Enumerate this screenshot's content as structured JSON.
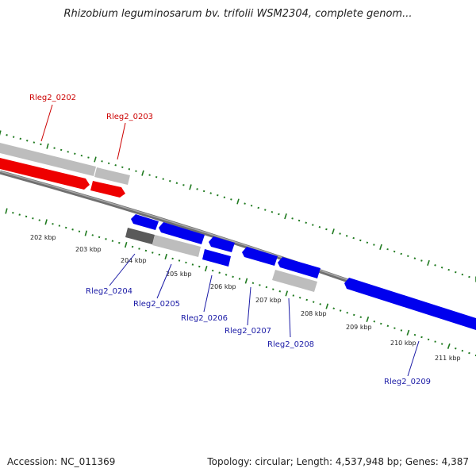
{
  "title": "Rhizobium leguminosarum bv. trifolii WSM2304, complete genom...",
  "footer": {
    "accession": "Accession: NC_011369",
    "topology": "Topology: circular; Length: 4,537,948 bp; Genes: 4,387"
  },
  "colors": {
    "forward_cds": "#ee0000",
    "reverse_cds": "#0000ee",
    "gene_feature": "#b8b8b8",
    "dark_feature": "#555555",
    "backbone": "#808080",
    "tick_marks": "#1f7a1f",
    "top_label": "#cc0000",
    "bottom_label": "#1a1aa6"
  },
  "kbp_labels": [
    "202 kbp",
    "203 kbp",
    "204 kbp",
    "205 kbp",
    "206 kbp",
    "207 kbp",
    "208 kbp",
    "209 kbp",
    "210 kbp",
    "211 kbp"
  ],
  "genes_top": [
    "Rleg2_0202",
    "Rleg2_0203"
  ],
  "genes_bottom": [
    "Rleg2_0204",
    "Rleg2_0205",
    "Rleg2_0206",
    "Rleg2_0207",
    "Rleg2_0208",
    "Rleg2_0209"
  ]
}
